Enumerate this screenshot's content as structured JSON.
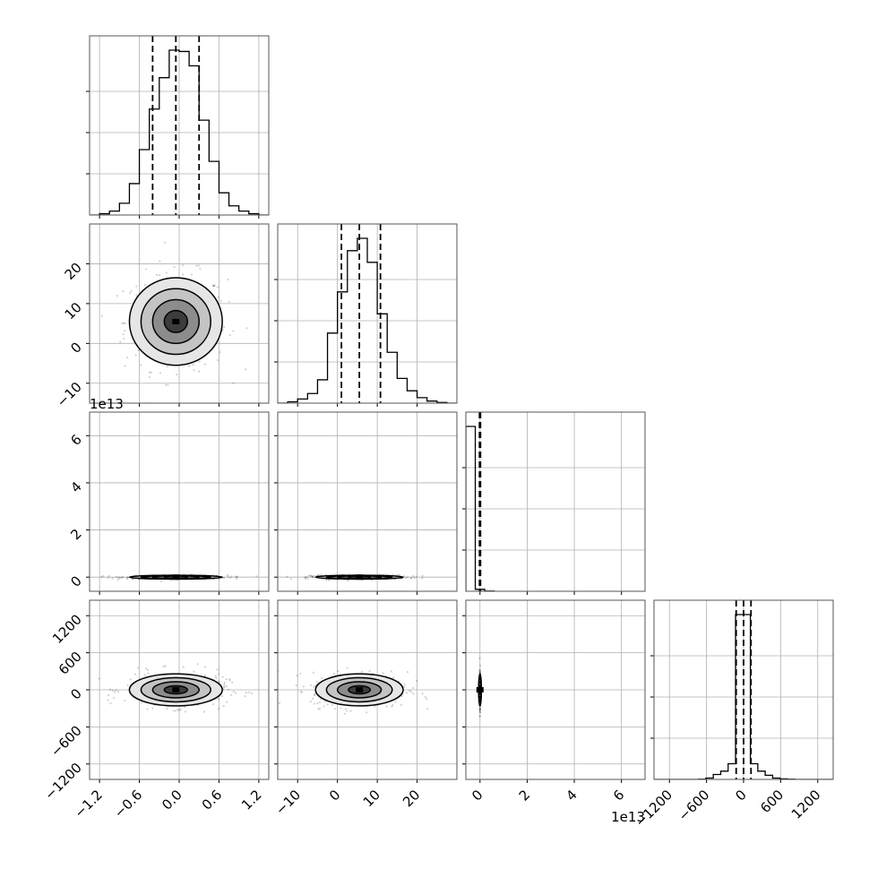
{
  "chart_data": {
    "type": "corner",
    "dimensions": [
      {
        "index": 0,
        "range": [
          -1.35,
          1.35
        ],
        "ticks": [
          -1.2,
          -0.6,
          0.0,
          0.6,
          1.2
        ],
        "tick_labels": [
          "−1.2",
          "−0.6",
          "0.0",
          "0.6",
          "1.2"
        ],
        "offset_label": ""
      },
      {
        "index": 1,
        "range": [
          -15,
          30
        ],
        "ticks": [
          -10,
          0,
          10,
          20
        ],
        "tick_labels": [
          "−10",
          "0",
          "10",
          "20"
        ],
        "offset_label": ""
      },
      {
        "index": 2,
        "range": [
          -0.6,
          7.0
        ],
        "ticks": [
          0,
          2,
          4,
          6
        ],
        "tick_labels": [
          "0",
          "2",
          "4",
          "6"
        ],
        "offset_label": "1e13"
      },
      {
        "index": 3,
        "range": [
          -1450,
          1450
        ],
        "ticks": [
          -1200,
          -600,
          0,
          600,
          1200
        ],
        "tick_labels": [
          "−1200",
          "−600",
          "0",
          "600",
          "1200"
        ],
        "offset_label": ""
      }
    ],
    "histograms": [
      {
        "dimension": 0,
        "bin_edges": [
          -1.35,
          -1.2,
          -1.05,
          -0.9,
          -0.75,
          -0.6,
          -0.45,
          -0.3,
          -0.15,
          0.0,
          0.15,
          0.3,
          0.45,
          0.6,
          0.75,
          0.9,
          1.05,
          1.2,
          1.35
        ],
        "counts": [
          0,
          2,
          6,
          18,
          48,
          100,
          162,
          210,
          252,
          250,
          228,
          145,
          82,
          34,
          14,
          6,
          2,
          0
        ],
        "quantiles": [
          -0.4,
          -0.05,
          0.3
        ]
      },
      {
        "dimension": 1,
        "bin_edges": [
          -15,
          -12.5,
          -10,
          -7.5,
          -5,
          -2.5,
          0,
          2.5,
          5,
          7.5,
          10,
          12.5,
          15,
          17.5,
          20,
          22.5,
          25,
          27.5,
          30
        ],
        "counts": [
          0,
          2,
          6,
          14,
          34,
          102,
          162,
          222,
          240,
          205,
          130,
          74,
          36,
          18,
          8,
          3,
          1,
          0
        ],
        "quantiles": [
          1.0,
          5.5,
          10.8
        ]
      },
      {
        "dimension": 2,
        "bin_edges": [
          -0.6,
          -0.2,
          0.2,
          0.6
        ],
        "counts": [
          1000,
          12,
          1
        ],
        "quantiles": [
          -0.02,
          0.0,
          0.02
        ]
      },
      {
        "dimension": 3,
        "bin_edges": [
          -1450,
          -1330,
          -1210,
          -1090,
          -970,
          -850,
          -730,
          -610,
          -490,
          -370,
          -250,
          -130,
          -10,
          110,
          230,
          350,
          470,
          590,
          710,
          830,
          950,
          1070,
          1190,
          1310,
          1450
        ],
        "counts": [
          0,
          0,
          0,
          0,
          0,
          0,
          1,
          8,
          30,
          50,
          95,
          1000,
          1000,
          95,
          50,
          25,
          8,
          3,
          1,
          0,
          0,
          0,
          0,
          0
        ],
        "quantiles": [
          -120,
          0,
          120
        ]
      }
    ],
    "joint_distributions": [
      {
        "x_dimension": 0,
        "y_dimension": 1,
        "center": [
          -0.05,
          5.5
        ],
        "sigma": [
          0.35,
          5.5
        ]
      },
      {
        "x_dimension": 0,
        "y_dimension": 2,
        "center": [
          -0.05,
          0.0
        ],
        "sigma": [
          0.35,
          0.04
        ]
      },
      {
        "x_dimension": 1,
        "y_dimension": 2,
        "center": [
          5.5,
          0.0
        ],
        "sigma": [
          5.5,
          0.04
        ]
      },
      {
        "x_dimension": 0,
        "y_dimension": 3,
        "center": [
          -0.05,
          0.0
        ],
        "sigma": [
          0.35,
          130
        ]
      },
      {
        "x_dimension": 1,
        "y_dimension": 3,
        "center": [
          5.5,
          0.0
        ],
        "sigma": [
          5.5,
          130
        ]
      },
      {
        "x_dimension": 2,
        "y_dimension": 3,
        "center": [
          0.0,
          0.0
        ],
        "sigma": [
          0.006,
          130
        ]
      }
    ],
    "title": "",
    "xlabel": "",
    "ylabel": "",
    "grid": true
  }
}
